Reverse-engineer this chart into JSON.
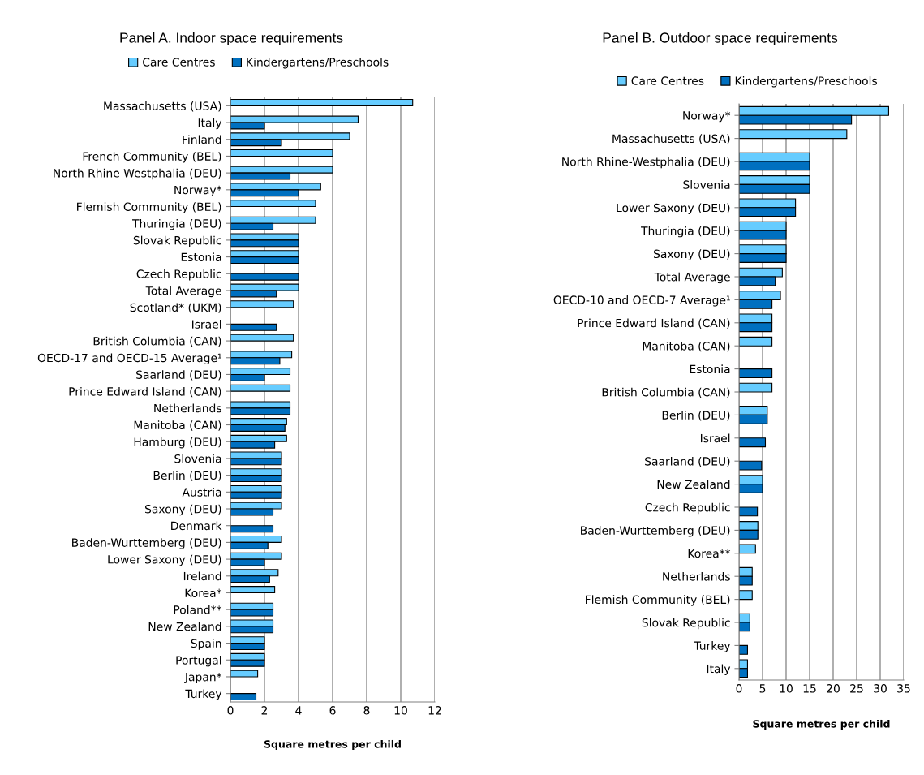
{
  "chart_data": [
    {
      "type": "bar",
      "orientation": "horizontal",
      "title": "Panel A. Indoor space requirements",
      "xlabel": "Square metres per child",
      "categories": [
        "Massachusetts (USA)",
        "Italy",
        "Finland",
        "French Community (BEL)",
        "North Rhine Westphalia (DEU)",
        "Norway*",
        "Flemish Community (BEL)",
        "Thuringia (DEU)",
        "Slovak Republic",
        "Estonia",
        "Czech Republic",
        "Total Average",
        "Scotland* (UKM)",
        "Israel",
        "British Columbia (CAN)",
        "OECD-17 and OECD-15 Average¹",
        "Saarland (DEU)",
        "Prince Edward Island (CAN)",
        "Netherlands",
        "Manitoba (CAN)",
        "Hamburg (DEU)",
        "Slovenia",
        "Berlin (DEU)",
        "Austria",
        "Saxony (DEU)",
        "Denmark",
        "Baden-Wurttemberg (DEU)",
        "Lower Saxony (DEU)",
        "Ireland",
        "Korea*",
        "Poland**",
        "New Zealand",
        "Spain",
        "Portugal",
        "Japan*",
        "Turkey"
      ],
      "series": [
        {
          "name": "Care Centres",
          "color": "#66ccff",
          "values": [
            10.7,
            7.5,
            7,
            6,
            6,
            5.3,
            5,
            5,
            4,
            4,
            null,
            4,
            3.7,
            null,
            3.7,
            3.6,
            3.5,
            3.5,
            3.5,
            3.3,
            3.3,
            3,
            3,
            3,
            3,
            null,
            3,
            3,
            2.8,
            2.6,
            2.5,
            2.5,
            2,
            2,
            1.6,
            null
          ]
        },
        {
          "name": "Kindergartens/Preschools",
          "color": "#0070c0",
          "values": [
            null,
            2,
            3,
            null,
            3.5,
            4,
            null,
            2.5,
            4,
            4,
            4,
            2.7,
            null,
            2.7,
            null,
            2.9,
            2,
            null,
            3.5,
            3.2,
            2.6,
            3,
            3,
            3,
            2.5,
            2.5,
            2.2,
            2,
            2.3,
            null,
            2.5,
            2.5,
            2,
            2,
            null,
            1.5
          ]
        }
      ],
      "xlim": [
        0,
        12
      ],
      "xticks": [
        0,
        2,
        4,
        6,
        8,
        10,
        12
      ],
      "grid": "x",
      "legend": "top"
    },
    {
      "type": "bar",
      "orientation": "horizontal",
      "title": "Panel B. Outdoor space requirements",
      "xlabel": "Square metres per child",
      "categories": [
        "Norway*",
        "Massachusetts (USA)",
        "North Rhine-Westphalia (DEU)",
        "Slovenia",
        "Lower Saxony (DEU)",
        "Thuringia (DEU)",
        "Saxony (DEU)",
        "Total Average",
        "OECD-10 and OECD-7 Average¹",
        "Prince Edward Island (CAN)",
        "Manitoba (CAN)",
        "Estonia",
        "British Columbia (CAN)",
        "Berlin (DEU)",
        "Israel",
        "Saarland (DEU)",
        "New Zealand",
        "Czech Republic",
        "Baden-Wurttemberg (DEU)",
        "Korea**",
        "Netherlands",
        "Flemish Community (BEL)",
        "Slovak Republic",
        "Turkey",
        "Italy"
      ],
      "series": [
        {
          "name": "Care Centres",
          "color": "#66ccff",
          "values": [
            31.8,
            22.9,
            15,
            15,
            12,
            10,
            10,
            9.2,
            8.8,
            7,
            7,
            null,
            7,
            6,
            null,
            null,
            5,
            null,
            4,
            3.5,
            2.8,
            2.8,
            2.3,
            null,
            1.8
          ]
        },
        {
          "name": "Kindergartens/Preschools",
          "color": "#0070c0",
          "values": [
            23.9,
            null,
            15,
            15,
            12,
            10,
            10,
            7.7,
            7,
            7,
            null,
            7,
            null,
            6,
            5.6,
            4.8,
            5,
            3.9,
            4,
            null,
            2.8,
            null,
            2.3,
            1.8,
            1.8
          ]
        }
      ],
      "xlim": [
        0,
        35
      ],
      "xticks": [
        0,
        5,
        10,
        15,
        20,
        25,
        30,
        35
      ],
      "grid": "x",
      "legend": "top"
    }
  ]
}
